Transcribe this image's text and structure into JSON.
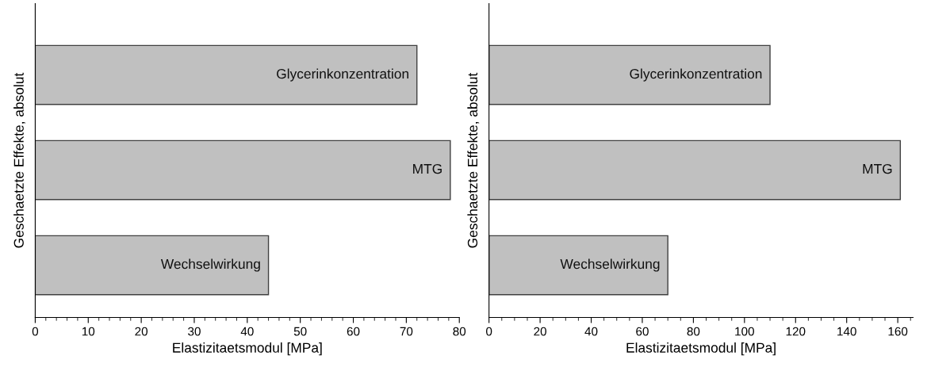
{
  "chart_data": [
    {
      "type": "bar",
      "orientation": "horizontal",
      "categories": [
        "Glycerinkonzentration",
        "MTG",
        "Wechselwirkung"
      ],
      "values": [
        72.0,
        78.3,
        44.0
      ],
      "color": "#c0c0c0",
      "xlabel": "Elastizitaetsmodul [MPa]",
      "ylabel": "Geschaetzte Effekte, absolut",
      "xlim": [
        0,
        80
      ],
      "xticks": [
        0,
        10,
        20,
        30,
        40,
        50,
        60,
        70,
        80
      ],
      "tick_labels": "x",
      "grid": false
    },
    {
      "type": "bar",
      "orientation": "horizontal",
      "categories": [
        "Glycerinkonzentration",
        "MTG",
        "Wechselwirkung"
      ],
      "values": [
        110,
        161,
        70
      ],
      "color": "#c0c0c0",
      "xlabel": "Elastizitaetsmodul [MPa]",
      "ylabel": "Geschaetzte Effekte, absolut",
      "xlim": [
        0,
        166
      ],
      "xticks": [
        0,
        20,
        40,
        60,
        80,
        100,
        120,
        140,
        160
      ],
      "tick_labels": "x",
      "grid": false
    }
  ]
}
